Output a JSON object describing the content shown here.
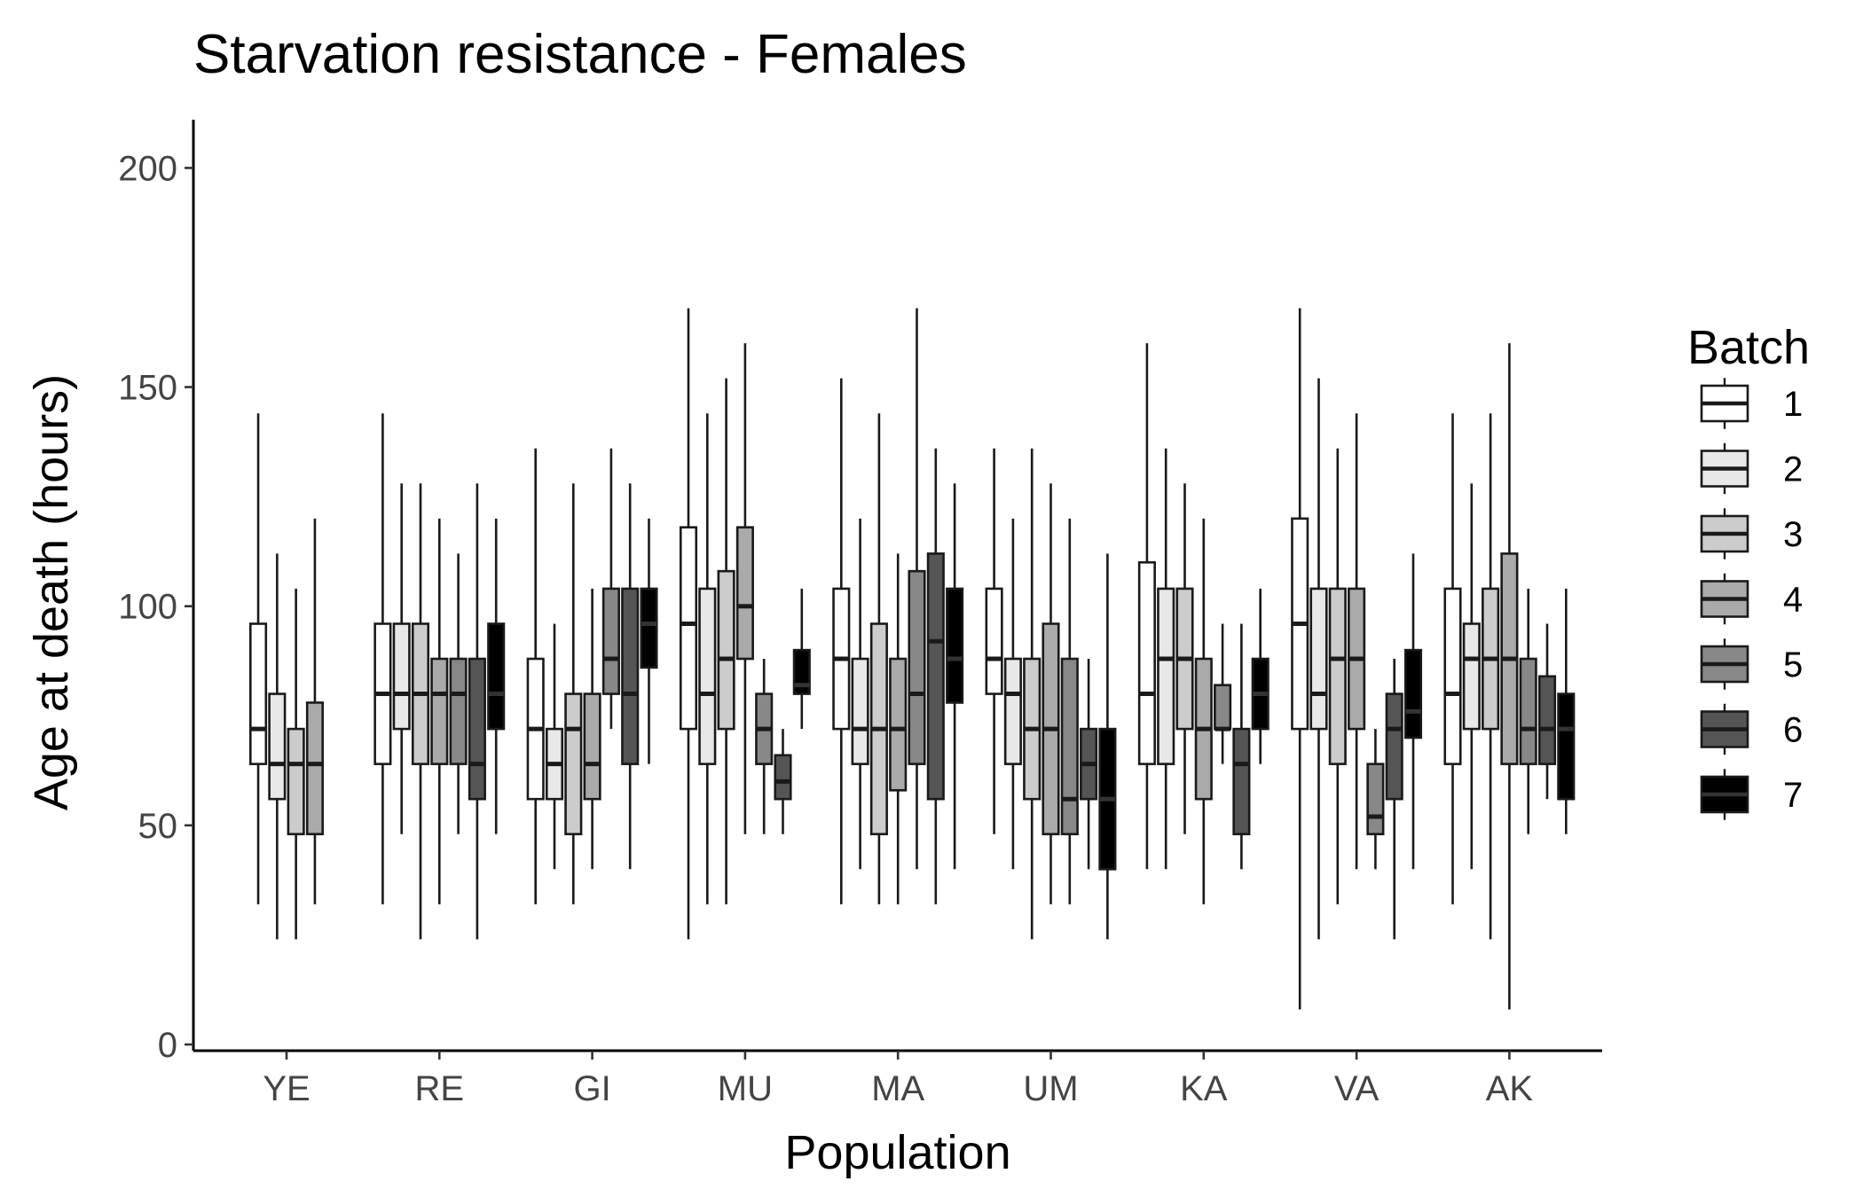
{
  "chart_data": {
    "type": "boxplot",
    "title": "Starvation resistance - Females",
    "xlabel": "Population",
    "ylabel": "Age at death (hours)",
    "ylim": [
      0,
      210
    ],
    "yticks": [
      0,
      50,
      100,
      150,
      200
    ],
    "categories": [
      "YE",
      "RE",
      "GI",
      "MU",
      "MA",
      "UM",
      "KA",
      "VA",
      "AK"
    ],
    "legend": {
      "title": "Batch",
      "position": "right",
      "entries": [
        "1",
        "2",
        "3",
        "4",
        "5",
        "6",
        "7"
      ]
    },
    "batch_colors": [
      "#ffffff",
      "#e8e8e8",
      "#cccccc",
      "#aaaaaa",
      "#888888",
      "#555555",
      "#000000"
    ],
    "grid": false,
    "boxes": [
      {
        "population": "YE",
        "batch": "1",
        "min": 32,
        "q1": 64,
        "median": 72,
        "q3": 96,
        "max": 144
      },
      {
        "population": "YE",
        "batch": "2",
        "min": 24,
        "q1": 56,
        "median": 64,
        "q3": 80,
        "max": 112
      },
      {
        "population": "YE",
        "batch": "3",
        "min": 24,
        "q1": 48,
        "median": 64,
        "q3": 72,
        "max": 104
      },
      {
        "population": "YE",
        "batch": "4",
        "min": 32,
        "q1": 48,
        "median": 64,
        "q3": 78,
        "max": 120
      },
      {
        "population": "RE",
        "batch": "1",
        "min": 32,
        "q1": 64,
        "median": 80,
        "q3": 96,
        "max": 144
      },
      {
        "population": "RE",
        "batch": "2",
        "min": 48,
        "q1": 72,
        "median": 80,
        "q3": 96,
        "max": 128
      },
      {
        "population": "RE",
        "batch": "3",
        "min": 24,
        "q1": 64,
        "median": 80,
        "q3": 96,
        "max": 128
      },
      {
        "population": "RE",
        "batch": "4",
        "min": 32,
        "q1": 64,
        "median": 80,
        "q3": 88,
        "max": 120
      },
      {
        "population": "RE",
        "batch": "5",
        "min": 48,
        "q1": 64,
        "median": 80,
        "q3": 88,
        "max": 112
      },
      {
        "population": "RE",
        "batch": "6",
        "min": 24,
        "q1": 56,
        "median": 64,
        "q3": 88,
        "max": 128
      },
      {
        "population": "RE",
        "batch": "7",
        "min": 48,
        "q1": 72,
        "median": 80,
        "q3": 96,
        "max": 120
      },
      {
        "population": "GI",
        "batch": "1",
        "min": 32,
        "q1": 56,
        "median": 72,
        "q3": 88,
        "max": 136
      },
      {
        "population": "GI",
        "batch": "2",
        "min": 40,
        "q1": 56,
        "median": 64,
        "q3": 72,
        "max": 96
      },
      {
        "population": "GI",
        "batch": "3",
        "min": 32,
        "q1": 48,
        "median": 72,
        "q3": 80,
        "max": 128
      },
      {
        "population": "GI",
        "batch": "4",
        "min": 40,
        "q1": 56,
        "median": 64,
        "q3": 80,
        "max": 104
      },
      {
        "population": "GI",
        "batch": "5",
        "min": 72,
        "q1": 80,
        "median": 88,
        "q3": 104,
        "max": 136
      },
      {
        "population": "GI",
        "batch": "6",
        "min": 40,
        "q1": 64,
        "median": 80,
        "q3": 104,
        "max": 128
      },
      {
        "population": "GI",
        "batch": "7",
        "min": 64,
        "q1": 86,
        "median": 96,
        "q3": 104,
        "max": 120
      },
      {
        "population": "MU",
        "batch": "1",
        "min": 24,
        "q1": 72,
        "median": 96,
        "q3": 118,
        "max": 168
      },
      {
        "population": "MU",
        "batch": "2",
        "min": 32,
        "q1": 64,
        "median": 80,
        "q3": 104,
        "max": 144
      },
      {
        "population": "MU",
        "batch": "3",
        "min": 32,
        "q1": 72,
        "median": 88,
        "q3": 108,
        "max": 152
      },
      {
        "population": "MU",
        "batch": "4",
        "min": 48,
        "q1": 88,
        "median": 100,
        "q3": 118,
        "max": 160
      },
      {
        "population": "MU",
        "batch": "5",
        "min": 48,
        "q1": 64,
        "median": 72,
        "q3": 80,
        "max": 88
      },
      {
        "population": "MU",
        "batch": "6",
        "min": 48,
        "q1": 56,
        "median": 60,
        "q3": 66,
        "max": 72
      },
      {
        "population": "MU",
        "batch": "7",
        "min": 72,
        "q1": 80,
        "median": 82,
        "q3": 90,
        "max": 104
      },
      {
        "population": "MA",
        "batch": "1",
        "min": 32,
        "q1": 72,
        "median": 88,
        "q3": 104,
        "max": 152
      },
      {
        "population": "MA",
        "batch": "2",
        "min": 40,
        "q1": 64,
        "median": 72,
        "q3": 88,
        "max": 120
      },
      {
        "population": "MA",
        "batch": "3",
        "min": 32,
        "q1": 48,
        "median": 72,
        "q3": 96,
        "max": 144
      },
      {
        "population": "MA",
        "batch": "4",
        "min": 32,
        "q1": 58,
        "median": 72,
        "q3": 88,
        "max": 112
      },
      {
        "population": "MA",
        "batch": "5",
        "min": 40,
        "q1": 64,
        "median": 80,
        "q3": 108,
        "max": 168
      },
      {
        "population": "MA",
        "batch": "6",
        "min": 32,
        "q1": 56,
        "median": 92,
        "q3": 112,
        "max": 136
      },
      {
        "population": "MA",
        "batch": "7",
        "min": 40,
        "q1": 78,
        "median": 88,
        "q3": 104,
        "max": 128
      },
      {
        "population": "UM",
        "batch": "1",
        "min": 48,
        "q1": 80,
        "median": 88,
        "q3": 104,
        "max": 136
      },
      {
        "population": "UM",
        "batch": "2",
        "min": 40,
        "q1": 64,
        "median": 80,
        "q3": 88,
        "max": 120
      },
      {
        "population": "UM",
        "batch": "3",
        "min": 24,
        "q1": 56,
        "median": 72,
        "q3": 88,
        "max": 136
      },
      {
        "population": "UM",
        "batch": "4",
        "min": 32,
        "q1": 48,
        "median": 72,
        "q3": 96,
        "max": 128
      },
      {
        "population": "UM",
        "batch": "5",
        "min": 32,
        "q1": 48,
        "median": 56,
        "q3": 88,
        "max": 120
      },
      {
        "population": "UM",
        "batch": "6",
        "min": 40,
        "q1": 56,
        "median": 64,
        "q3": 72,
        "max": 88
      },
      {
        "population": "UM",
        "batch": "7",
        "min": 24,
        "q1": 40,
        "median": 56,
        "q3": 72,
        "max": 112
      },
      {
        "population": "KA",
        "batch": "1",
        "min": 40,
        "q1": 64,
        "median": 80,
        "q3": 110,
        "max": 160
      },
      {
        "population": "KA",
        "batch": "2",
        "min": 40,
        "q1": 64,
        "median": 88,
        "q3": 104,
        "max": 136
      },
      {
        "population": "KA",
        "batch": "3",
        "min": 48,
        "q1": 72,
        "median": 88,
        "q3": 104,
        "max": 128
      },
      {
        "population": "KA",
        "batch": "4",
        "min": 32,
        "q1": 56,
        "median": 72,
        "q3": 88,
        "max": 120
      },
      {
        "population": "KA",
        "batch": "5",
        "min": 64,
        "q1": 72,
        "median": 72,
        "q3": 82,
        "max": 96
      },
      {
        "population": "KA",
        "batch": "6",
        "min": 40,
        "q1": 48,
        "median": 64,
        "q3": 72,
        "max": 96
      },
      {
        "population": "KA",
        "batch": "7",
        "min": 64,
        "q1": 72,
        "median": 80,
        "q3": 88,
        "max": 104
      },
      {
        "population": "VA",
        "batch": "1",
        "min": 8,
        "q1": 72,
        "median": 96,
        "q3": 120,
        "max": 168
      },
      {
        "population": "VA",
        "batch": "2",
        "min": 24,
        "q1": 72,
        "median": 80,
        "q3": 104,
        "max": 152
      },
      {
        "population": "VA",
        "batch": "3",
        "min": 32,
        "q1": 64,
        "median": 88,
        "q3": 104,
        "max": 136
      },
      {
        "population": "VA",
        "batch": "4",
        "min": 40,
        "q1": 72,
        "median": 88,
        "q3": 104,
        "max": 144
      },
      {
        "population": "VA",
        "batch": "5",
        "min": 40,
        "q1": 48,
        "median": 52,
        "q3": 64,
        "max": 72
      },
      {
        "population": "VA",
        "batch": "6",
        "min": 24,
        "q1": 56,
        "median": 72,
        "q3": 80,
        "max": 88
      },
      {
        "population": "VA",
        "batch": "7",
        "min": 40,
        "q1": 70,
        "median": 76,
        "q3": 90,
        "max": 112
      },
      {
        "population": "AK",
        "batch": "1",
        "min": 32,
        "q1": 64,
        "median": 80,
        "q3": 104,
        "max": 144
      },
      {
        "population": "AK",
        "batch": "2",
        "min": 40,
        "q1": 72,
        "median": 88,
        "q3": 96,
        "max": 128
      },
      {
        "population": "AK",
        "batch": "3",
        "min": 24,
        "q1": 72,
        "median": 88,
        "q3": 104,
        "max": 144
      },
      {
        "population": "AK",
        "batch": "4",
        "min": 8,
        "q1": 64,
        "median": 88,
        "q3": 112,
        "max": 160
      },
      {
        "population": "AK",
        "batch": "5",
        "min": 48,
        "q1": 64,
        "median": 72,
        "q3": 88,
        "max": 104
      },
      {
        "population": "AK",
        "batch": "6",
        "min": 56,
        "q1": 64,
        "median": 72,
        "q3": 84,
        "max": 96
      },
      {
        "population": "AK",
        "batch": "7",
        "min": 48,
        "q1": 56,
        "median": 72,
        "q3": 80,
        "max": 104
      }
    ]
  }
}
